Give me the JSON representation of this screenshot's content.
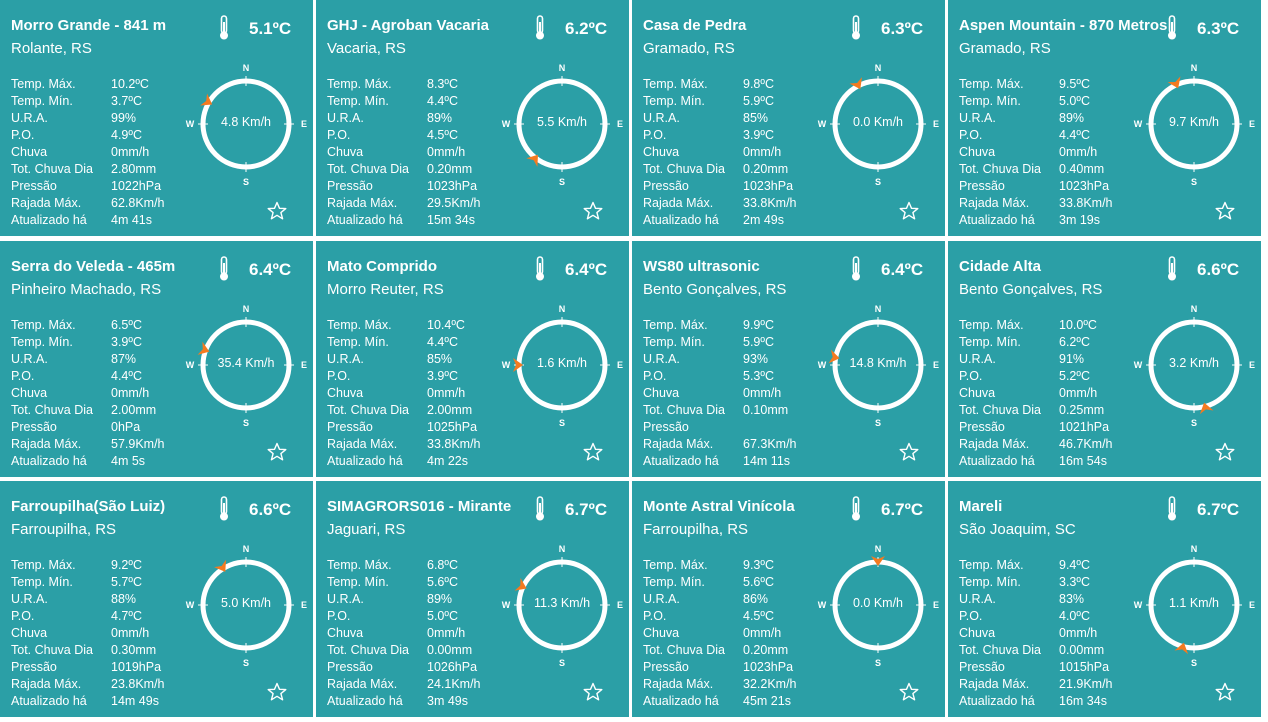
{
  "labels": {
    "max": "Temp. Máx.",
    "min": "Temp. Mín.",
    "ura": "U.R.A.",
    "po": "P.O.",
    "chuva": "Chuva",
    "tot_chuva": "Tot. Chuva Dia",
    "pressao": "Pressão",
    "rajada": "Rajada Máx.",
    "atualizado": "Atualizado há"
  },
  "compass_letters": {
    "n": "N",
    "s": "S",
    "e": "E",
    "w": "W"
  },
  "icons": {
    "temperature": "thermometer-icon",
    "favorite": "star-outline-icon",
    "wind_pointer": "arrow-icon"
  },
  "colors": {
    "card_bg": "#2b9fa6",
    "text": "#ffffff",
    "wind_arrow": "#f47a20"
  },
  "stations": [
    {
      "name": "Morro Grande - 841 m",
      "location": "Rolante, RS",
      "temp": "5.1ºC",
      "max": "10.2ºC",
      "min": "3.7ºC",
      "ura": "99%",
      "po": "4.9ºC",
      "chuva": "0mm/h",
      "tot_chuva": "2.80mm",
      "pressao": "1022hPa",
      "rajada": "62.8Km/h",
      "atualizado": "4m 41s",
      "wind_speed": "4.8 Km/h",
      "wind_dir_deg": 300
    },
    {
      "name": "GHJ - Agroban Vacaria",
      "location": "Vacaria, RS",
      "temp": "6.2ºC",
      "max": "8.3ºC",
      "min": "4.4ºC",
      "ura": "89%",
      "po": "4.5ºC",
      "chuva": "0mm/h",
      "tot_chuva": "0.20mm",
      "pressao": "1023hPa",
      "rajada": "29.5Km/h",
      "atualizado": "15m 34s",
      "wind_speed": "5.5 Km/h",
      "wind_dir_deg": 218
    },
    {
      "name": "Casa de Pedra",
      "location": "Gramado, RS",
      "temp": "6.3ºC",
      "max": "9.8ºC",
      "min": "5.9ºC",
      "ura": "85%",
      "po": "3.9ºC",
      "chuva": "0mm/h",
      "tot_chuva": "0.20mm",
      "pressao": "1023hPa",
      "rajada": "33.8Km/h",
      "atualizado": "2m 49s",
      "wind_speed": "0.0 Km/h",
      "wind_dir_deg": 333
    },
    {
      "name": "Aspen Mountain - 870 Metros",
      "location": "Gramado, RS",
      "temp": "6.3ºC",
      "max": "9.5ºC",
      "min": "5.0ºC",
      "ura": "89%",
      "po": "4.4ºC",
      "chuva": "0mm/h",
      "tot_chuva": "0.40mm",
      "pressao": "1023hPa",
      "rajada": "33.8Km/h",
      "atualizado": "3m 19s",
      "wind_speed": "9.7 Km/h",
      "wind_dir_deg": 336
    },
    {
      "name": "Serra do Veleda - 465m",
      "location": "Pinheiro Machado, RS",
      "temp": "6.4ºC",
      "max": "6.5ºC",
      "min": "3.9ºC",
      "ura": "87%",
      "po": "4.4ºC",
      "chuva": "0mm/h",
      "tot_chuva": "2.00mm",
      "pressao": "0hPa",
      "rajada": "57.9Km/h",
      "atualizado": "4m 5s",
      "wind_speed": "35.4 Km/h",
      "wind_dir_deg": 290
    },
    {
      "name": "Mato Comprido",
      "location": "Morro Reuter, RS",
      "temp": "6.4ºC",
      "max": "10.4ºC",
      "min": "4.4ºC",
      "ura": "85%",
      "po": "3.9ºC",
      "chuva": "0mm/h",
      "tot_chuva": "2.00mm",
      "pressao": "1025hPa",
      "rajada": "33.8Km/h",
      "atualizado": "4m 22s",
      "wind_speed": "1.6 Km/h",
      "wind_dir_deg": 270
    },
    {
      "name": "WS80 ultrasonic",
      "location": "Bento Gonçalves, RS",
      "temp": "6.4ºC",
      "max": "9.9ºC",
      "min": "5.9ºC",
      "ura": "93%",
      "po": "5.3ºC",
      "chuva": "0mm/h",
      "tot_chuva": "0.10mm",
      "pressao": "",
      "rajada": "67.3Km/h",
      "atualizado": "14m 11s",
      "wind_speed": "14.8 Km/h",
      "wind_dir_deg": 280
    },
    {
      "name": "Cidade Alta",
      "location": "Bento Gonçalves, RS",
      "temp": "6.6ºC",
      "max": "10.0ºC",
      "min": "6.2ºC",
      "ura": "91%",
      "po": "5.2ºC",
      "chuva": "0mm/h",
      "tot_chuva": "0.25mm",
      "pressao": "1021hPa",
      "rajada": "46.7Km/h",
      "atualizado": "16m 54s",
      "wind_speed": "3.2 Km/h",
      "wind_dir_deg": 165
    },
    {
      "name": "Farroupilha(São Luiz)",
      "location": "Farroupilha, RS",
      "temp": "6.6ºC",
      "max": "9.2ºC",
      "min": "5.7ºC",
      "ura": "88%",
      "po": "4.7ºC",
      "chuva": "0mm/h",
      "tot_chuva": "0.30mm",
      "pressao": "1019hPa",
      "rajada": "23.8Km/h",
      "atualizado": "14m 49s",
      "wind_speed": "5.0 Km/h",
      "wind_dir_deg": 328
    },
    {
      "name": "SIMAGRORS016 - Mirante",
      "location": "Jaguari, RS",
      "temp": "6.7ºC",
      "max": "6.8ºC",
      "min": "5.6ºC",
      "ura": "89%",
      "po": "5.0ºC",
      "chuva": "0mm/h",
      "tot_chuva": "0.00mm",
      "pressao": "1026hPa",
      "rajada": "24.1Km/h",
      "atualizado": "3m 49s",
      "wind_speed": "11.3 Km/h",
      "wind_dir_deg": 295
    },
    {
      "name": "Monte Astral Vinícola",
      "location": "Farroupilha, RS",
      "temp": "6.7ºC",
      "max": "9.3ºC",
      "min": "5.6ºC",
      "ura": "86%",
      "po": "4.5ºC",
      "chuva": "0mm/h",
      "tot_chuva": "0.20mm",
      "pressao": "1023hPa",
      "rajada": "32.2Km/h",
      "atualizado": "45m 21s",
      "wind_speed": "0.0 Km/h",
      "wind_dir_deg": 0
    },
    {
      "name": "Mareli",
      "location": "São Joaquim, SC",
      "temp": "6.7ºC",
      "max": "9.4ºC",
      "min": "3.3ºC",
      "ura": "83%",
      "po": "4.0ºC",
      "chuva": "0mm/h",
      "tot_chuva": "0.00mm",
      "pressao": "1015hPa",
      "rajada": "21.9Km/h",
      "atualizado": "16m 34s",
      "wind_speed": "1.1 Km/h",
      "wind_dir_deg": 195
    }
  ]
}
